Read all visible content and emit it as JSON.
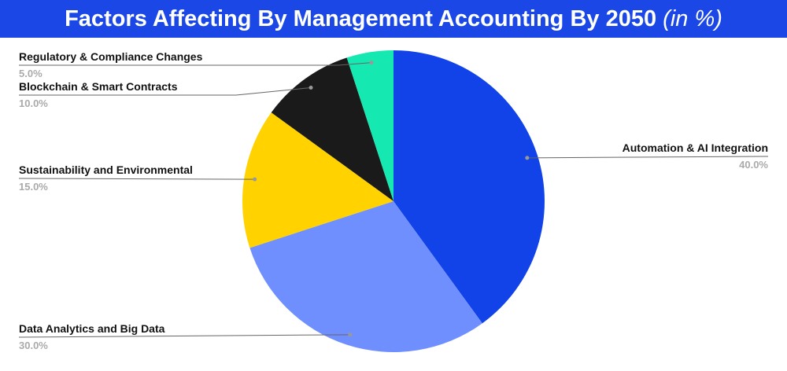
{
  "chart_data": {
    "type": "pie",
    "title": "Factors Affecting By Management Accounting By 2050",
    "title_note": "(in %)",
    "categories": [
      "Automation & AI Integration",
      "Data Analytics and Big Data",
      "Sustainability and Environmental",
      "Blockchain & Smart Contracts",
      "Regulatory & Compliance Changes"
    ],
    "values": [
      40,
      30,
      15,
      10,
      5
    ],
    "value_labels": [
      "40.0%",
      "30.0%",
      "15.0%",
      "10.0%",
      "5.0%"
    ],
    "colors": [
      "#1243e8",
      "#6f8fff",
      "#ffd200",
      "#1a1a1a",
      "#15e8b0"
    ]
  }
}
